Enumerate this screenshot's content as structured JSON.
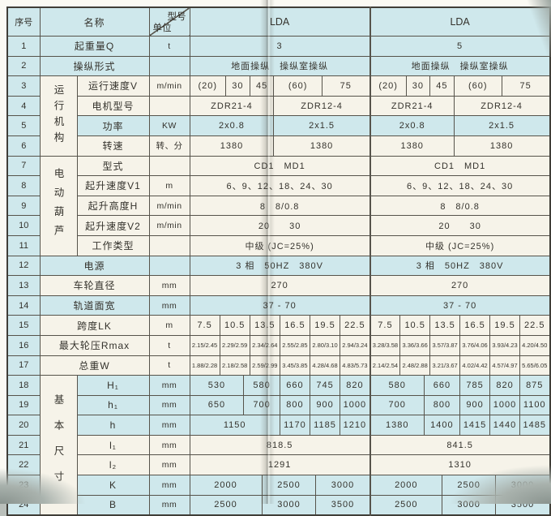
{
  "colors": {
    "row_cyan": "#cfe8ec",
    "row_cream": "#f6f3e9",
    "grid_line": "#56534b"
  },
  "header": {
    "serial": "序号",
    "name": "名称",
    "model": "型号",
    "unit": "单位",
    "group_left": "LDA",
    "group_right": "LDA"
  },
  "table": {
    "rows": [
      {
        "no": "1",
        "name": "起重量Q",
        "unit": "t",
        "stripe": "cyan",
        "left": [
          [
            "3",
            30
          ]
        ],
        "right": [
          [
            "5",
            30
          ]
        ]
      },
      {
        "no": "2",
        "name": "操纵形式",
        "unit": "",
        "stripe": "cyan",
        "left": [
          [
            "地面操纵　操纵室操纵",
            30
          ]
        ],
        "right": [
          [
            "地面操纵　操纵室操纵",
            30
          ]
        ]
      },
      {
        "no": "3",
        "group": {
          "label": "运行机构",
          "rows": 4
        },
        "name": "运行速度V",
        "unit": "m/min",
        "stripe": "cream",
        "left": [
          [
            "(20)",
            6
          ],
          [
            "30",
            4
          ],
          [
            "45",
            4
          ],
          [
            "(60)",
            8
          ],
          [
            "75",
            8
          ]
        ],
        "right": [
          [
            "(20)",
            6
          ],
          [
            "30",
            4
          ],
          [
            "45",
            4
          ],
          [
            "(60)",
            8
          ],
          [
            "75",
            8
          ]
        ]
      },
      {
        "no": "4",
        "name": "电机型号",
        "unit": "",
        "stripe": "cream",
        "left": [
          [
            "ZDR21-4",
            14
          ],
          [
            "ZDR12-4",
            16
          ]
        ],
        "right": [
          [
            "ZDR21-4",
            14
          ],
          [
            "ZDR12-4",
            16
          ]
        ]
      },
      {
        "no": "5",
        "name": "功率",
        "unit": "KW",
        "stripe": "cyan",
        "left": [
          [
            "2x0.8",
            14
          ],
          [
            "2x1.5",
            16
          ]
        ],
        "right": [
          [
            "2x0.8",
            14
          ],
          [
            "2x1.5",
            16
          ]
        ]
      },
      {
        "no": "6",
        "name": "转速",
        "unit": "转、分",
        "stripe": "cream",
        "left": [
          [
            "1380",
            14
          ],
          [
            "1380",
            16
          ]
        ],
        "right": [
          [
            "1380",
            14
          ],
          [
            "1380",
            16
          ]
        ]
      },
      {
        "no": "7",
        "group": {
          "label": "电动葫芦",
          "rows": 5
        },
        "name": "型式",
        "unit": "",
        "stripe": "cream",
        "left": [
          [
            "CD1　MD1",
            30
          ]
        ],
        "right": [
          [
            "CD1　MD1",
            30
          ]
        ]
      },
      {
        "no": "8",
        "name": "起升速度V1",
        "unit": "m",
        "stripe": "cream",
        "left": [
          [
            "6、9、12、18、24、30",
            30
          ]
        ],
        "right": [
          [
            "6、9、12、18、24、30",
            30
          ]
        ]
      },
      {
        "no": "9",
        "name": "起升高度H",
        "unit": "m/min",
        "stripe": "cream",
        "left": [
          [
            "8　8/0.8",
            30
          ]
        ],
        "right": [
          [
            "8　8/0.8",
            30
          ]
        ]
      },
      {
        "no": "10",
        "name": "起升速度V2",
        "unit": "m/min",
        "stripe": "cream",
        "left": [
          [
            "20　　30",
            30
          ]
        ],
        "right": [
          [
            "20　　30",
            30
          ]
        ]
      },
      {
        "no": "11",
        "name": "工作类型",
        "unit": "",
        "stripe": "cream",
        "left": [
          [
            "中级 (JC=25%)",
            30
          ]
        ],
        "right": [
          [
            "中级 (JC=25%)",
            30
          ]
        ]
      },
      {
        "no": "12",
        "name": "电源",
        "unit": "",
        "stripe": "cyan",
        "left": [
          [
            "3 相　50HZ　380V",
            30
          ]
        ],
        "right": [
          [
            "3 相　50HZ　380V",
            30
          ]
        ]
      },
      {
        "no": "13",
        "name": "车轮直径",
        "unit": "mm",
        "stripe": "cream",
        "left": [
          [
            "270",
            30
          ]
        ],
        "right": [
          [
            "270",
            30
          ]
        ]
      },
      {
        "no": "14",
        "name": "轨道面宽",
        "unit": "mm",
        "stripe": "cyan",
        "left": [
          [
            "37 - 70",
            30
          ]
        ],
        "right": [
          [
            "37 - 70",
            30
          ]
        ]
      },
      {
        "no": "15",
        "name": "跨度LK",
        "unit": "m",
        "stripe": "cream",
        "left": [
          [
            "7.5",
            5
          ],
          [
            "10.5",
            5
          ],
          [
            "13.5",
            5
          ],
          [
            "16.5",
            5
          ],
          [
            "19.5",
            5
          ],
          [
            "22.5",
            5
          ]
        ],
        "right": [
          [
            "7.5",
            5
          ],
          [
            "10.5",
            5
          ],
          [
            "13.5",
            5
          ],
          [
            "16.5",
            5
          ],
          [
            "19.5",
            5
          ],
          [
            "22.5",
            5
          ]
        ]
      },
      {
        "no": "16",
        "name": "最大轮压Rmax",
        "unit": "t",
        "stripe": "cream",
        "small": true,
        "left": [
          [
            "2.15/2.45",
            5
          ],
          [
            "2.29/2.59",
            5
          ],
          [
            "2.34/2.64",
            5
          ],
          [
            "2.55/2.85",
            5
          ],
          [
            "2.80/3.10",
            5
          ],
          [
            "2.94/3.24",
            5
          ]
        ],
        "right": [
          [
            "3.28/3.58",
            5
          ],
          [
            "3.36/3.66",
            5
          ],
          [
            "3.57/3.87",
            5
          ],
          [
            "3.76/4.06",
            5
          ],
          [
            "3.93/4.23",
            5
          ],
          [
            "4.20/4.50",
            5
          ]
        ]
      },
      {
        "no": "17",
        "name": "总重W",
        "unit": "t",
        "stripe": "cream",
        "small": true,
        "left": [
          [
            "1.88/2.28",
            5
          ],
          [
            "2.18/2.58",
            5
          ],
          [
            "2.59/2.99",
            5
          ],
          [
            "3.45/3.85",
            5
          ],
          [
            "4.28/4.68",
            5
          ],
          [
            "4.83/5.73",
            5
          ]
        ],
        "right": [
          [
            "2.14/2.54",
            5
          ],
          [
            "2.48/2.88",
            5
          ],
          [
            "3.21/3.67",
            5
          ],
          [
            "4.02/4.42",
            5
          ],
          [
            "4.57/4.97",
            5
          ],
          [
            "5.65/6.05",
            5
          ]
        ]
      },
      {
        "no": "18",
        "group": {
          "label": "基本尺寸",
          "rows": 7
        },
        "name": "H₁",
        "unit": "mm",
        "stripe": "cyan",
        "left": [
          [
            "530",
            9
          ],
          [
            "580",
            6
          ],
          [
            "660",
            5
          ],
          [
            "745",
            5
          ],
          [
            "820",
            5
          ]
        ],
        "right": [
          [
            "580",
            9
          ],
          [
            "660",
            6
          ],
          [
            "785",
            5
          ],
          [
            "820",
            5
          ],
          [
            "875",
            5
          ]
        ]
      },
      {
        "no": "19",
        "name": "h₁",
        "unit": "mm",
        "stripe": "cyan",
        "left": [
          [
            "650",
            9
          ],
          [
            "700",
            6
          ],
          [
            "800",
            5
          ],
          [
            "900",
            5
          ],
          [
            "1000",
            5
          ]
        ],
        "right": [
          [
            "700",
            9
          ],
          [
            "800",
            6
          ],
          [
            "900",
            5
          ],
          [
            "1000",
            5
          ],
          [
            "1100",
            5
          ]
        ]
      },
      {
        "no": "20",
        "name": "h",
        "unit": "mm",
        "stripe": "cyan",
        "left": [
          [
            "1150",
            15
          ],
          [
            "1170",
            5
          ],
          [
            "1185",
            5
          ],
          [
            "1210",
            5
          ]
        ],
        "right": [
          [
            "1380",
            9
          ],
          [
            "1400",
            6
          ],
          [
            "1415",
            5
          ],
          [
            "1440",
            5
          ],
          [
            "1485",
            5
          ]
        ]
      },
      {
        "no": "21",
        "name": "l₁",
        "unit": "mm",
        "stripe": "cream",
        "left": [
          [
            "818.5",
            30
          ]
        ],
        "right": [
          [
            "841.5",
            30
          ]
        ]
      },
      {
        "no": "22",
        "name": "l₂",
        "unit": "mm",
        "stripe": "cream",
        "left": [
          [
            "1291",
            30
          ]
        ],
        "right": [
          [
            "1310",
            30
          ]
        ]
      },
      {
        "no": "23",
        "name": "K",
        "unit": "mm",
        "stripe": "cyan",
        "left": [
          [
            "2000",
            12
          ],
          [
            "2500",
            9
          ],
          [
            "3000",
            9
          ]
        ],
        "right": [
          [
            "2000",
            12
          ],
          [
            "2500",
            9
          ],
          [
            "3000",
            9
          ]
        ]
      },
      {
        "no": "24",
        "name": "B",
        "unit": "mm",
        "stripe": "cyan",
        "left": [
          [
            "2500",
            12
          ],
          [
            "3000",
            9
          ],
          [
            "3500",
            9
          ]
        ],
        "right": [
          [
            "2500",
            12
          ],
          [
            "3000",
            9
          ],
          [
            "3500",
            9
          ]
        ]
      }
    ]
  }
}
